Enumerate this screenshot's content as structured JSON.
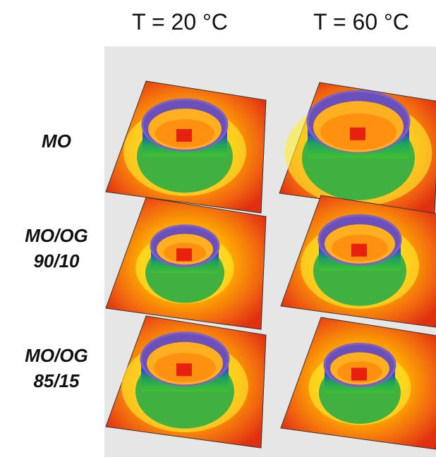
{
  "columns": [
    "T = 20 °C",
    "T = 60 °C"
  ],
  "rows": [
    [
      "MO"
    ],
    [
      "MO/OG",
      "90/10"
    ],
    [
      "MO/OG",
      "85/15"
    ]
  ]
}
